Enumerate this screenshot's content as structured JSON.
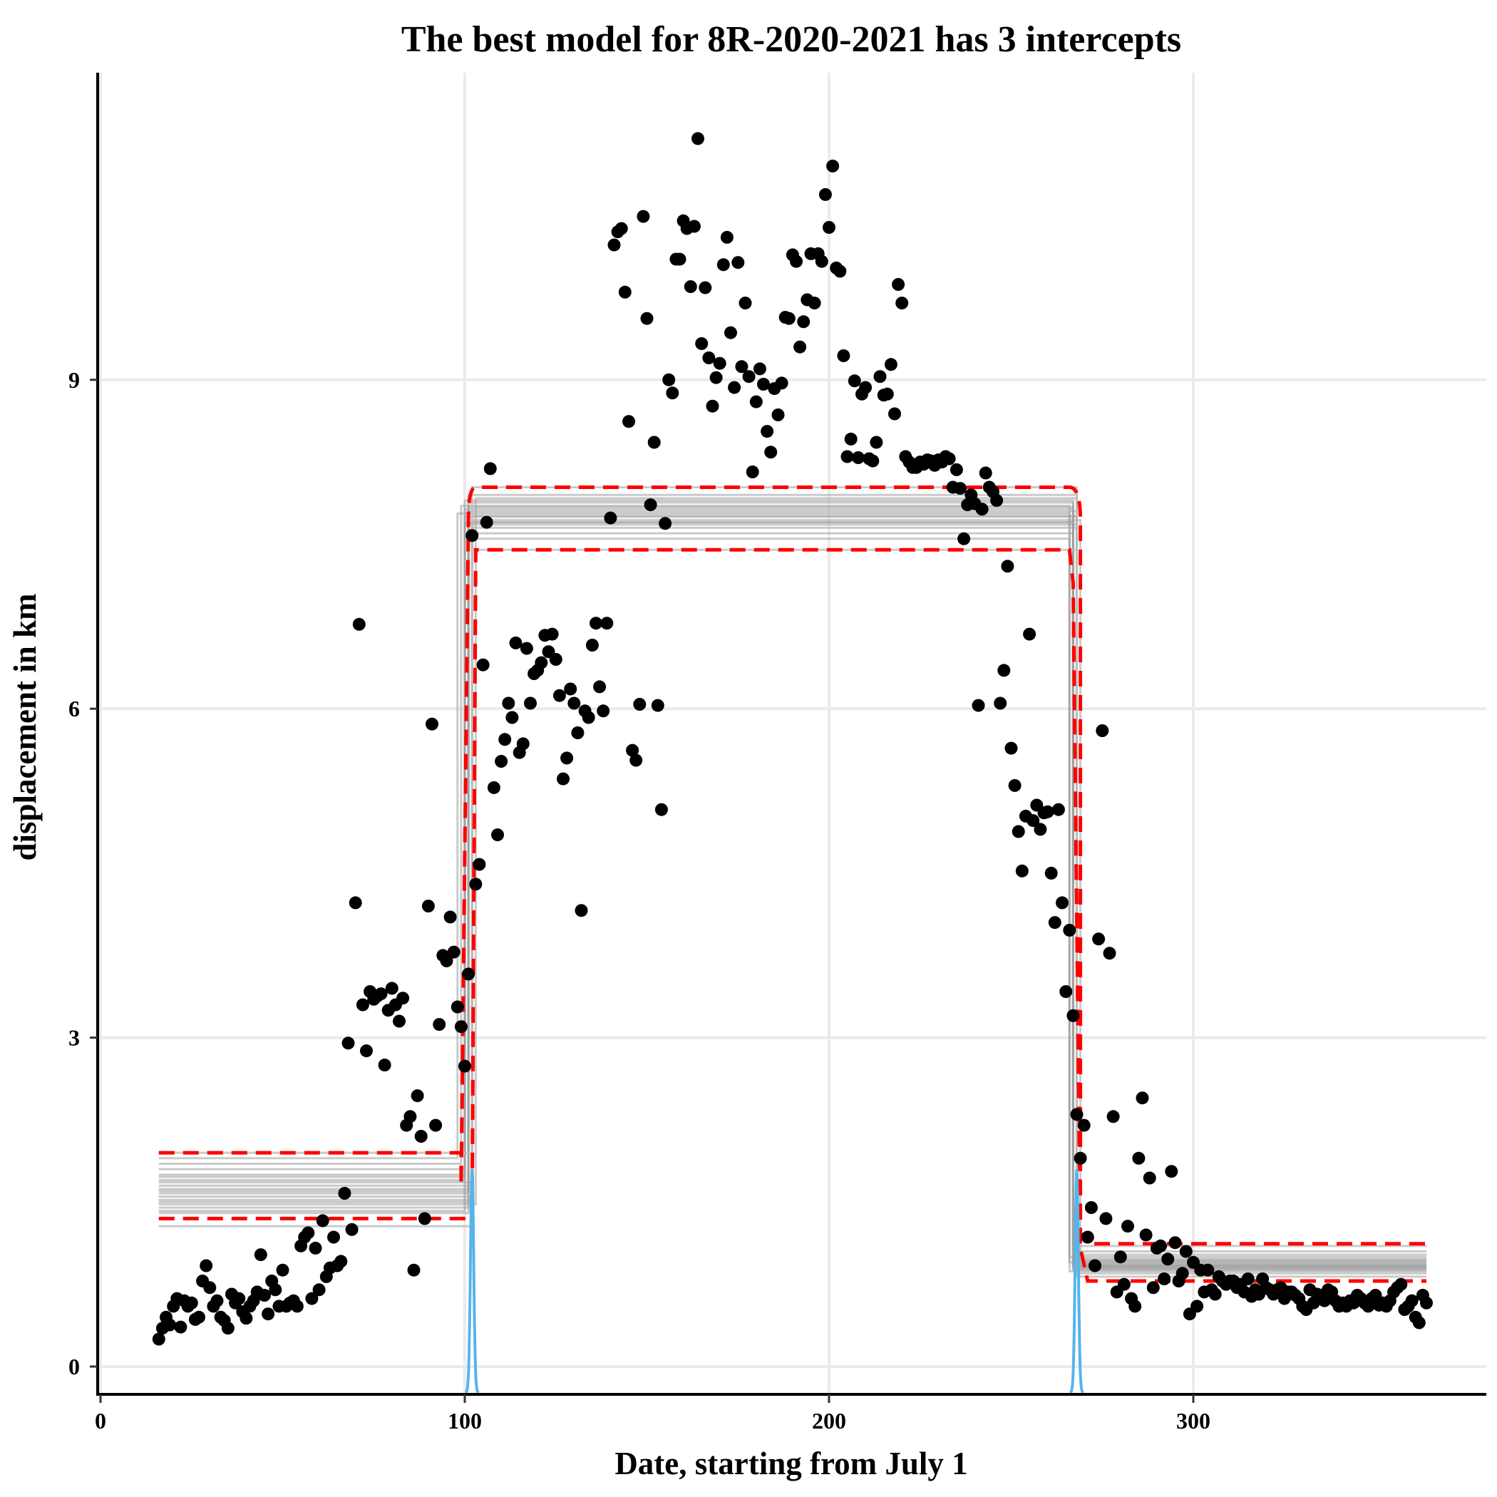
{
  "chart_data": {
    "type": "scatter",
    "title": "The best model for 8R-2020-2021 has 3 intercepts",
    "xlabel": "Date, starting from July 1",
    "ylabel": "displacement in km",
    "xlim": [
      0,
      383
    ],
    "ylim": [
      -0.35,
      12.1
    ],
    "x_ticks": [
      0,
      100,
      200,
      300
    ],
    "y_ticks": [
      0,
      3,
      6,
      9
    ],
    "grid": true,
    "colors": {
      "points": "#000000",
      "fit_lines": "#9e9e9e",
      "credible_band": "#ff0000",
      "changepoint_density": "#56b4e9",
      "grid": "#ebebeb"
    },
    "points": [
      [
        16,
        0.25
      ],
      [
        17,
        0.35
      ],
      [
        18,
        0.45
      ],
      [
        19,
        0.38
      ],
      [
        20,
        0.55
      ],
      [
        21,
        0.62
      ],
      [
        22,
        0.36
      ],
      [
        23,
        0.6
      ],
      [
        24,
        0.55
      ],
      [
        25,
        0.58
      ],
      [
        26,
        0.43
      ],
      [
        27,
        0.45
      ],
      [
        28,
        0.78
      ],
      [
        29,
        0.92
      ],
      [
        30,
        0.72
      ],
      [
        31,
        0.55
      ],
      [
        32,
        0.6
      ],
      [
        33,
        0.45
      ],
      [
        34,
        0.42
      ],
      [
        35,
        0.35
      ],
      [
        36,
        0.66
      ],
      [
        37,
        0.58
      ],
      [
        38,
        0.62
      ],
      [
        39,
        0.5
      ],
      [
        40,
        0.44
      ],
      [
        41,
        0.55
      ],
      [
        42,
        0.6
      ],
      [
        43,
        0.68
      ],
      [
        44,
        1.02
      ],
      [
        45,
        0.65
      ],
      [
        46,
        0.48
      ],
      [
        47,
        0.78
      ],
      [
        48,
        0.7
      ],
      [
        49,
        0.55
      ],
      [
        50,
        0.88
      ],
      [
        51,
        0.55
      ],
      [
        52,
        0.58
      ],
      [
        53,
        0.6
      ],
      [
        54,
        0.55
      ],
      [
        55,
        1.1
      ],
      [
        56,
        1.18
      ],
      [
        57,
        1.22
      ],
      [
        58,
        0.62
      ],
      [
        59,
        1.08
      ],
      [
        60,
        0.7
      ],
      [
        61,
        1.33
      ],
      [
        62,
        0.82
      ],
      [
        63,
        0.9
      ],
      [
        64,
        1.18
      ],
      [
        65,
        0.92
      ],
      [
        66,
        0.96
      ],
      [
        67,
        1.58
      ],
      [
        68,
        2.95
      ],
      [
        69,
        1.25
      ],
      [
        70,
        4.23
      ],
      [
        71,
        6.77
      ],
      [
        72,
        3.3
      ],
      [
        73,
        2.88
      ],
      [
        74,
        3.42
      ],
      [
        75,
        3.35
      ],
      [
        76,
        3.38
      ],
      [
        77,
        3.4
      ],
      [
        78,
        2.75
      ],
      [
        79,
        3.25
      ],
      [
        80,
        3.45
      ],
      [
        81,
        3.3
      ],
      [
        82,
        3.15
      ],
      [
        83,
        3.36
      ],
      [
        84,
        2.2
      ],
      [
        85,
        2.28
      ],
      [
        86,
        0.88
      ],
      [
        87,
        2.47
      ],
      [
        88,
        2.1
      ],
      [
        89,
        1.35
      ],
      [
        90,
        4.2
      ],
      [
        91,
        5.86
      ],
      [
        92,
        2.2
      ],
      [
        93,
        3.12
      ],
      [
        94,
        3.75
      ],
      [
        95,
        3.7
      ],
      [
        96,
        4.1
      ],
      [
        97,
        3.78
      ],
      [
        98,
        3.28
      ],
      [
        99,
        3.1
      ],
      [
        100,
        2.74
      ],
      [
        101,
        3.58
      ],
      [
        102,
        7.58
      ],
      [
        103,
        4.4
      ],
      [
        104,
        4.58
      ],
      [
        105,
        6.4
      ],
      [
        106,
        7.7
      ],
      [
        107,
        8.19
      ],
      [
        108,
        5.28
      ],
      [
        109,
        4.85
      ],
      [
        110,
        5.52
      ],
      [
        111,
        5.72
      ],
      [
        112,
        6.05
      ],
      [
        113,
        5.92
      ],
      [
        114,
        6.6
      ],
      [
        115,
        5.6
      ],
      [
        116,
        5.68
      ],
      [
        117,
        6.55
      ],
      [
        118,
        6.05
      ],
      [
        119,
        6.32
      ],
      [
        120,
        6.35
      ],
      [
        121,
        6.42
      ],
      [
        122,
        6.67
      ],
      [
        123,
        6.52
      ],
      [
        124,
        6.68
      ],
      [
        125,
        6.45
      ],
      [
        126,
        6.12
      ],
      [
        127,
        5.36
      ],
      [
        128,
        5.55
      ],
      [
        129,
        6.18
      ],
      [
        130,
        6.05
      ],
      [
        131,
        5.78
      ],
      [
        132,
        4.16
      ],
      [
        133,
        5.98
      ],
      [
        134,
        5.92
      ],
      [
        135,
        6.58
      ],
      [
        136,
        6.78
      ],
      [
        137,
        6.2
      ],
      [
        138,
        5.98
      ],
      [
        139,
        6.78
      ],
      [
        140,
        7.74
      ],
      [
        141,
        10.23
      ],
      [
        142,
        10.35
      ],
      [
        143,
        10.38
      ],
      [
        144,
        9.8
      ],
      [
        145,
        8.62
      ],
      [
        146,
        5.62
      ],
      [
        147,
        5.53
      ],
      [
        148,
        6.04
      ],
      [
        149,
        10.49
      ],
      [
        150,
        9.56
      ],
      [
        151,
        7.86
      ],
      [
        152,
        8.43
      ],
      [
        153,
        6.03
      ],
      [
        154,
        5.08
      ],
      [
        155,
        7.69
      ],
      [
        156,
        9.0
      ],
      [
        157,
        8.88
      ],
      [
        158,
        10.1
      ],
      [
        159,
        10.1
      ],
      [
        160,
        10.45
      ],
      [
        161,
        10.38
      ],
      [
        162,
        9.85
      ],
      [
        163,
        10.4
      ],
      [
        164,
        11.2
      ],
      [
        165,
        9.33
      ],
      [
        166,
        9.84
      ],
      [
        167,
        9.2
      ],
      [
        168,
        8.76
      ],
      [
        169,
        9.02
      ],
      [
        170,
        9.15
      ],
      [
        171,
        10.05
      ],
      [
        172,
        10.3
      ],
      [
        173,
        9.43
      ],
      [
        174,
        8.93
      ],
      [
        175,
        10.07
      ],
      [
        176,
        9.12
      ],
      [
        177,
        9.7
      ],
      [
        178,
        9.03
      ],
      [
        179,
        8.16
      ],
      [
        180,
        8.8
      ],
      [
        181,
        9.1
      ],
      [
        182,
        8.96
      ],
      [
        183,
        8.53
      ],
      [
        184,
        8.34
      ],
      [
        185,
        8.92
      ],
      [
        186,
        8.68
      ],
      [
        187,
        8.97
      ],
      [
        188,
        9.57
      ],
      [
        189,
        9.56
      ],
      [
        190,
        10.14
      ],
      [
        191,
        10.08
      ],
      [
        192,
        9.3
      ],
      [
        193,
        9.53
      ],
      [
        194,
        9.73
      ],
      [
        195,
        10.15
      ],
      [
        196,
        9.7
      ],
      [
        197,
        10.15
      ],
      [
        198,
        10.08
      ],
      [
        199,
        10.69
      ],
      [
        200,
        10.39
      ],
      [
        201,
        10.95
      ],
      [
        202,
        10.02
      ],
      [
        203,
        9.99
      ],
      [
        204,
        9.22
      ],
      [
        205,
        8.3
      ],
      [
        206,
        8.46
      ],
      [
        207,
        8.99
      ],
      [
        208,
        8.29
      ],
      [
        209,
        8.87
      ],
      [
        210,
        8.93
      ],
      [
        211,
        8.28
      ],
      [
        212,
        8.26
      ],
      [
        213,
        8.43
      ],
      [
        214,
        9.03
      ],
      [
        215,
        8.86
      ],
      [
        216,
        8.87
      ],
      [
        217,
        9.14
      ],
      [
        218,
        8.69
      ],
      [
        219,
        9.87
      ],
      [
        220,
        9.7
      ],
      [
        221,
        8.3
      ],
      [
        222,
        8.25
      ],
      [
        223,
        8.2
      ],
      [
        224,
        8.2
      ],
      [
        225,
        8.25
      ],
      [
        226,
        8.23
      ],
      [
        227,
        8.27
      ],
      [
        228,
        8.26
      ],
      [
        229,
        8.22
      ],
      [
        230,
        8.27
      ],
      [
        231,
        8.25
      ],
      [
        232,
        8.3
      ],
      [
        233,
        8.28
      ],
      [
        234,
        8.02
      ],
      [
        235,
        8.18
      ],
      [
        236,
        8.01
      ],
      [
        237,
        7.55
      ],
      [
        238,
        7.86
      ],
      [
        239,
        7.95
      ],
      [
        240,
        7.87
      ],
      [
        241,
        6.03
      ],
      [
        242,
        7.82
      ],
      [
        243,
        8.15
      ],
      [
        244,
        8.02
      ],
      [
        245,
        7.98
      ],
      [
        246,
        7.9
      ],
      [
        247,
        6.05
      ],
      [
        248,
        6.35
      ],
      [
        249,
        7.3
      ],
      [
        250,
        5.64
      ],
      [
        251,
        5.3
      ],
      [
        252,
        4.88
      ],
      [
        253,
        4.52
      ],
      [
        254,
        5.02
      ],
      [
        255,
        6.68
      ],
      [
        256,
        4.98
      ],
      [
        257,
        5.12
      ],
      [
        258,
        4.9
      ],
      [
        259,
        5.05
      ],
      [
        260,
        5.06
      ],
      [
        261,
        4.5
      ],
      [
        262,
        4.05
      ],
      [
        263,
        5.08
      ],
      [
        264,
        4.23
      ],
      [
        265,
        3.42
      ],
      [
        266,
        3.98
      ],
      [
        267,
        3.2
      ],
      [
        268,
        2.3
      ],
      [
        269,
        1.9
      ],
      [
        270,
        2.2
      ],
      [
        271,
        1.18
      ],
      [
        272,
        1.45
      ],
      [
        273,
        0.92
      ],
      [
        274,
        3.9
      ],
      [
        275,
        5.8
      ],
      [
        276,
        1.35
      ],
      [
        277,
        3.77
      ],
      [
        278,
        2.28
      ],
      [
        279,
        0.68
      ],
      [
        280,
        1.0
      ],
      [
        281,
        0.75
      ],
      [
        282,
        1.28
      ],
      [
        283,
        0.62
      ],
      [
        284,
        0.55
      ],
      [
        285,
        1.9
      ],
      [
        286,
        2.45
      ],
      [
        287,
        1.2
      ],
      [
        288,
        1.72
      ],
      [
        289,
        0.72
      ],
      [
        290,
        1.08
      ],
      [
        291,
        1.1
      ],
      [
        292,
        0.8
      ],
      [
        293,
        0.98
      ],
      [
        294,
        1.78
      ],
      [
        295,
        1.13
      ],
      [
        296,
        0.78
      ],
      [
        297,
        0.85
      ],
      [
        298,
        1.05
      ],
      [
        299,
        0.48
      ],
      [
        300,
        0.95
      ],
      [
        301,
        0.55
      ],
      [
        302,
        0.88
      ],
      [
        303,
        0.68
      ],
      [
        304,
        0.88
      ],
      [
        305,
        0.7
      ],
      [
        306,
        0.66
      ],
      [
        307,
        0.82
      ],
      [
        308,
        0.78
      ],
      [
        309,
        0.75
      ],
      [
        310,
        0.78
      ],
      [
        311,
        0.78
      ],
      [
        312,
        0.72
      ],
      [
        313,
        0.75
      ],
      [
        314,
        0.68
      ],
      [
        315,
        0.8
      ],
      [
        316,
        0.64
      ],
      [
        317,
        0.7
      ],
      [
        318,
        0.66
      ],
      [
        319,
        0.8
      ],
      [
        320,
        0.72
      ],
      [
        321,
        0.7
      ],
      [
        322,
        0.66
      ],
      [
        323,
        0.7
      ],
      [
        324,
        0.72
      ],
      [
        325,
        0.62
      ],
      [
        326,
        0.68
      ],
      [
        327,
        0.68
      ],
      [
        328,
        0.65
      ],
      [
        329,
        0.62
      ],
      [
        330,
        0.55
      ],
      [
        331,
        0.52
      ],
      [
        332,
        0.7
      ],
      [
        333,
        0.58
      ],
      [
        334,
        0.66
      ],
      [
        335,
        0.65
      ],
      [
        336,
        0.6
      ],
      [
        337,
        0.7
      ],
      [
        338,
        0.68
      ],
      [
        339,
        0.6
      ],
      [
        340,
        0.55
      ],
      [
        341,
        0.58
      ],
      [
        342,
        0.55
      ],
      [
        343,
        0.6
      ],
      [
        344,
        0.58
      ],
      [
        345,
        0.65
      ],
      [
        346,
        0.62
      ],
      [
        347,
        0.58
      ],
      [
        348,
        0.55
      ],
      [
        349,
        0.62
      ],
      [
        350,
        0.65
      ],
      [
        351,
        0.56
      ],
      [
        352,
        0.58
      ],
      [
        353,
        0.55
      ],
      [
        354,
        0.6
      ],
      [
        355,
        0.68
      ],
      [
        356,
        0.72
      ],
      [
        357,
        0.75
      ],
      [
        358,
        0.52
      ],
      [
        359,
        0.55
      ],
      [
        360,
        0.6
      ],
      [
        361,
        0.45
      ],
      [
        362,
        0.4
      ],
      [
        363,
        0.65
      ],
      [
        364,
        0.58
      ]
    ],
    "fit_lines": {
      "changepoints": [
        [
          98,
          266
        ],
        [
          99,
          266
        ],
        [
          100,
          267
        ],
        [
          100,
          267
        ],
        [
          100,
          268
        ],
        [
          101,
          267
        ],
        [
          101,
          267
        ],
        [
          101,
          268
        ],
        [
          101,
          268
        ],
        [
          102,
          268
        ],
        [
          102,
          269
        ],
        [
          102,
          267
        ],
        [
          103,
          268
        ],
        [
          101,
          266
        ],
        [
          100,
          268
        ],
        [
          101,
          267
        ],
        [
          102,
          268
        ],
        [
          100,
          267
        ]
      ],
      "levels": [
        [
          1.9,
          7.78,
          1.0
        ],
        [
          1.85,
          7.85,
          0.95
        ],
        [
          1.8,
          7.9,
          0.92
        ],
        [
          1.75,
          7.82,
          0.98
        ],
        [
          1.7,
          7.75,
          0.9
        ],
        [
          1.65,
          7.7,
          0.88
        ],
        [
          1.62,
          7.88,
          1.05
        ],
        [
          1.6,
          7.95,
          0.85
        ],
        [
          1.58,
          7.8,
          0.94
        ],
        [
          1.55,
          7.65,
          0.9
        ],
        [
          1.52,
          7.72,
          0.96
        ],
        [
          1.5,
          7.6,
          0.89
        ],
        [
          1.48,
          7.92,
          0.93
        ],
        [
          1.45,
          7.55,
          0.87
        ],
        [
          1.42,
          7.68,
          1.02
        ],
        [
          1.4,
          7.84,
          0.91
        ],
        [
          1.68,
          7.76,
          0.97
        ],
        [
          1.73,
          7.7,
          0.92
        ]
      ],
      "extra_levels": [
        [
          1.28,
          7.45,
          0.82
        ],
        [
          1.95,
          8.02,
          1.1
        ]
      ]
    },
    "credible_band": {
      "changepoints": [
        101,
        268
      ],
      "upper": [
        1.95,
        8.02,
        1.12
      ],
      "lower": [
        1.35,
        7.45,
        0.78
      ]
    },
    "changepoint_density": [
      {
        "center": 102,
        "halfwidth": 1.8,
        "peak": 1.8
      },
      {
        "center": 268,
        "halfwidth": 1.8,
        "peak": 1.8
      }
    ]
  }
}
